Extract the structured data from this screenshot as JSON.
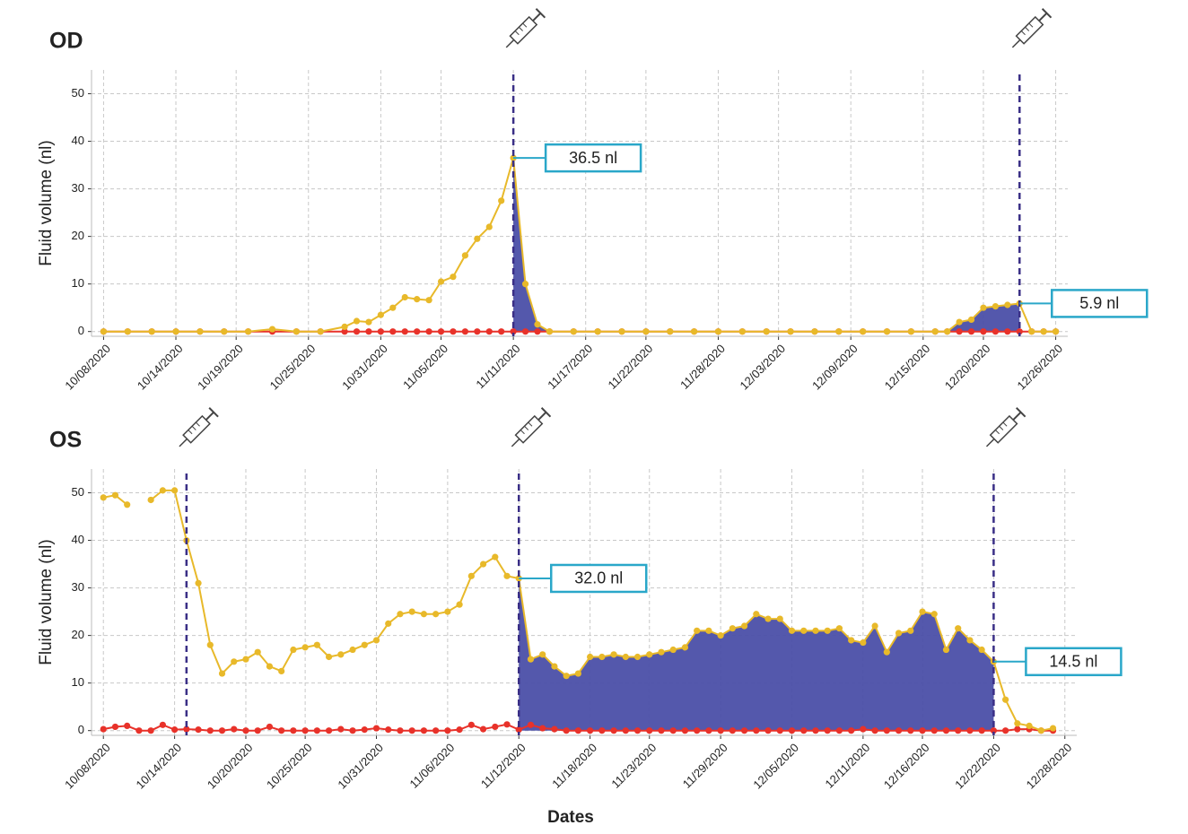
{
  "chart_data": [
    {
      "type": "line",
      "title": "OD",
      "ylabel": "Fluid volume (nl)",
      "x": [
        "10/08/2020",
        "10/10/2020",
        "10/12/2020",
        "10/14/2020",
        "10/16/2020",
        "10/18/2020",
        "10/20/2020",
        "10/22/2020",
        "10/24/2020",
        "10/26/2020",
        "10/28/2020",
        "10/29/2020",
        "10/30/2020",
        "10/31/2020",
        "11/01/2020",
        "11/02/2020",
        "11/03/2020",
        "11/04/2020",
        "11/05/2020",
        "11/06/2020",
        "11/07/2020",
        "11/08/2020",
        "11/09/2020",
        "11/10/2020",
        "11/11/2020",
        "11/12/2020",
        "11/13/2020",
        "11/14/2020",
        "11/16/2020",
        "11/18/2020",
        "11/20/2020",
        "11/22/2020",
        "11/24/2020",
        "11/26/2020",
        "11/28/2020",
        "11/30/2020",
        "12/02/2020",
        "12/04/2020",
        "12/06/2020",
        "12/08/2020",
        "12/10/2020",
        "12/12/2020",
        "12/14/2020",
        "12/16/2020",
        "12/17/2020",
        "12/18/2020",
        "12/19/2020",
        "12/20/2020",
        "12/21/2020",
        "12/22/2020",
        "12/23/2020",
        "12/24/2020",
        "12/25/2020",
        "12/26/2020"
      ],
      "series": [
        {
          "color": "#e8b92a",
          "values": [
            0,
            0,
            0,
            0,
            0,
            0,
            0,
            0.5,
            0,
            0,
            1.0,
            2.2,
            2.0,
            3.5,
            5.0,
            7.2,
            6.8,
            6.6,
            10.5,
            11.5,
            16.0,
            19.5,
            22.0,
            27.5,
            36.5,
            10.0,
            1.5,
            0,
            0,
            0,
            0,
            0,
            0,
            0,
            0,
            0,
            0,
            0,
            0,
            0,
            0,
            0,
            0,
            0,
            0,
            2.0,
            2.5,
            5.0,
            5.3,
            5.6,
            5.9,
            0,
            0,
            0
          ]
        },
        {
          "color": "#e8322a",
          "values": [
            0,
            0,
            0,
            0,
            0,
            0,
            0,
            0,
            0,
            0,
            0,
            0,
            0,
            0,
            0,
            0,
            0,
            0,
            0,
            0,
            0,
            0,
            0,
            0,
            0,
            0,
            0,
            0,
            0,
            0,
            0,
            0,
            0,
            0,
            0,
            0,
            0,
            0,
            0,
            0,
            0,
            0,
            0,
            0,
            0,
            0,
            0,
            0,
            0,
            0,
            0,
            0,
            0,
            0
          ]
        }
      ],
      "xlim": [
        "10/07/2020",
        "12/27/2020"
      ],
      "xticks": [
        "10/08/2020",
        "10/14/2020",
        "10/19/2020",
        "10/25/2020",
        "10/31/2020",
        "11/05/2020",
        "11/11/2020",
        "11/17/2020",
        "11/22/2020",
        "11/28/2020",
        "12/03/2020",
        "12/09/2020",
        "12/15/2020",
        "12/20/2020",
        "12/26/2020"
      ],
      "ylim": [
        -1,
        55
      ],
      "yticks": [
        0,
        10,
        20,
        30,
        40,
        50
      ],
      "grid": true,
      "shade_color": "#4b4fa8",
      "shaded": [
        {
          "from": "11/11/2020",
          "to": "11/14/2020"
        },
        {
          "from": "12/17/2020",
          "to": "12/23/2020"
        }
      ],
      "injections": [
        "11/11/2020",
        "12/23/2020"
      ],
      "annotations": [
        {
          "label": "36.5 nl",
          "value": 36.5,
          "x": "11/11/2020"
        },
        {
          "label": "5.9 nl",
          "value": 5.9,
          "x": "12/23/2020"
        }
      ]
    },
    {
      "type": "line",
      "title": "OS",
      "ylabel": "Fluid volume (nl)",
      "xlabel": "Dates",
      "x": [
        "10/08/2020",
        "10/09/2020",
        "10/10/2020",
        "10/11/2020",
        "10/12/2020",
        "10/13/2020",
        "10/14/2020",
        "10/15/2020",
        "10/16/2020",
        "10/17/2020",
        "10/18/2020",
        "10/19/2020",
        "10/20/2020",
        "10/21/2020",
        "10/22/2020",
        "10/23/2020",
        "10/24/2020",
        "10/25/2020",
        "10/26/2020",
        "10/27/2020",
        "10/28/2020",
        "10/29/2020",
        "10/30/2020",
        "10/31/2020",
        "11/01/2020",
        "11/02/2020",
        "11/03/2020",
        "11/04/2020",
        "11/05/2020",
        "11/06/2020",
        "11/07/2020",
        "11/08/2020",
        "11/09/2020",
        "11/10/2020",
        "11/11/2020",
        "11/12/2020",
        "11/13/2020",
        "11/14/2020",
        "11/15/2020",
        "11/16/2020",
        "11/17/2020",
        "11/18/2020",
        "11/19/2020",
        "11/20/2020",
        "11/21/2020",
        "11/22/2020",
        "11/23/2020",
        "11/24/2020",
        "11/25/2020",
        "11/26/2020",
        "11/27/2020",
        "11/28/2020",
        "11/29/2020",
        "11/30/2020",
        "12/01/2020",
        "12/02/2020",
        "12/03/2020",
        "12/04/2020",
        "12/05/2020",
        "12/06/2020",
        "12/07/2020",
        "12/08/2020",
        "12/09/2020",
        "12/10/2020",
        "12/11/2020",
        "12/12/2020",
        "12/13/2020",
        "12/14/2020",
        "12/15/2020",
        "12/16/2020",
        "12/17/2020",
        "12/18/2020",
        "12/19/2020",
        "12/20/2020",
        "12/21/2020",
        "12/22/2020",
        "12/23/2020",
        "12/24/2020",
        "12/25/2020",
        "12/26/2020",
        "12/27/2020"
      ],
      "series": [
        {
          "color": "#e8b92a",
          "values": [
            49,
            49.5,
            47.5,
            null,
            48.5,
            50.5,
            50.5,
            40,
            31,
            18,
            12,
            14.5,
            15,
            16.5,
            13.5,
            12.5,
            17,
            17.5,
            18,
            15.5,
            16,
            17,
            18,
            19,
            22.5,
            24.5,
            25,
            24.5,
            24.5,
            25,
            26.5,
            32.5,
            35,
            36.5,
            32.5,
            32.0,
            15,
            16,
            13.5,
            11.5,
            12,
            15.5,
            15.5,
            16,
            15.5,
            15.5,
            16,
            16.5,
            17,
            17.5,
            21,
            21,
            20,
            21.5,
            22,
            24.5,
            23.5,
            23.5,
            21,
            21,
            21,
            21,
            21.5,
            19,
            18.5,
            22,
            16.5,
            20.5,
            21,
            25,
            24.5,
            17,
            21.5,
            19,
            17,
            14.5,
            6.5,
            1.5,
            1,
            0,
            0.5
          ]
        },
        {
          "color": "#e8322a",
          "values": [
            0.3,
            0.8,
            1,
            0,
            0,
            1.2,
            0.2,
            0.3,
            0.2,
            0,
            0,
            0.3,
            0,
            0,
            0.8,
            0,
            0,
            0,
            0,
            0,
            0.3,
            0,
            0.2,
            0.5,
            0.2,
            0,
            0,
            0,
            0,
            0,
            0.2,
            1.2,
            0.3,
            0.8,
            1.3,
            0.2,
            1.2,
            0.5,
            0.3,
            0,
            0,
            0,
            0,
            0,
            0,
            0,
            0,
            0,
            0,
            0,
            0,
            0,
            0,
            0,
            0,
            0,
            0,
            0,
            0,
            0,
            0,
            0,
            0,
            0,
            0.3,
            0,
            0,
            0,
            0,
            0,
            0,
            0,
            0,
            0,
            0,
            0,
            0,
            0.3,
            0.3,
            0,
            0
          ]
        }
      ],
      "xlim": [
        "10/07/2020",
        "12/29/2020"
      ],
      "xticks": [
        "10/08/2020",
        "10/14/2020",
        "10/20/2020",
        "10/25/2020",
        "10/31/2020",
        "11/06/2020",
        "11/12/2020",
        "11/18/2020",
        "11/23/2020",
        "11/29/2020",
        "12/05/2020",
        "12/11/2020",
        "12/16/2020",
        "12/22/2020",
        "12/28/2020"
      ],
      "ylim": [
        -1,
        55
      ],
      "yticks": [
        0,
        10,
        20,
        30,
        40,
        50
      ],
      "grid": true,
      "shade_color": "#4b4fa8",
      "shaded": [
        {
          "from": "11/12/2020",
          "to": "12/22/2020"
        }
      ],
      "injections": [
        "10/15/2020",
        "11/12/2020",
        "12/22/2020"
      ],
      "annotations": [
        {
          "label": "32.0 nl",
          "value": 32.0,
          "x": "11/12/2020"
        },
        {
          "label": "14.5 nl",
          "value": 14.5,
          "x": "12/22/2020"
        }
      ]
    }
  ]
}
